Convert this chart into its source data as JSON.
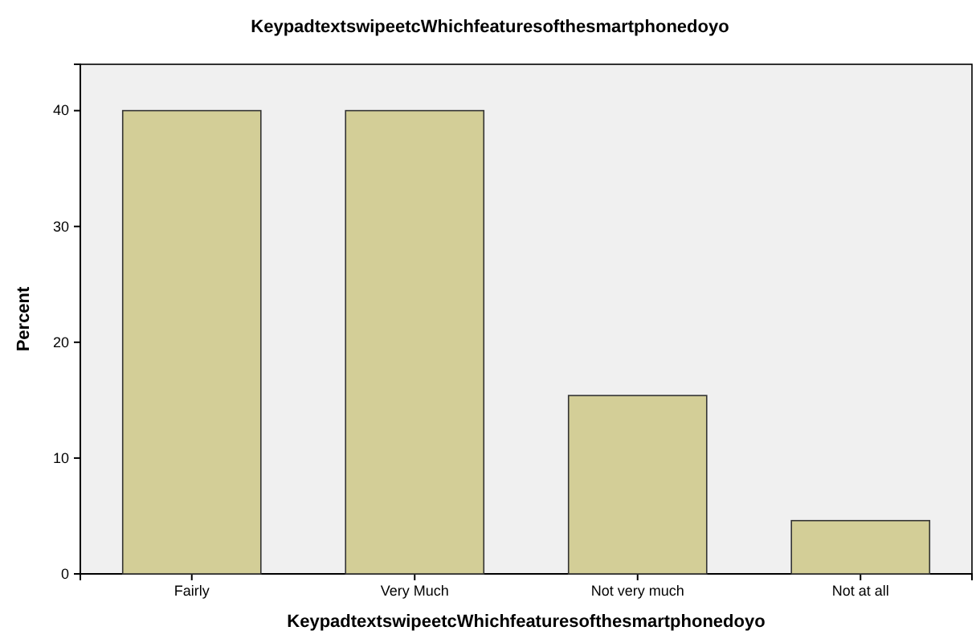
{
  "chart_data": {
    "type": "bar",
    "title": "KeypadtextswipeetcWhichfeaturesofthesmartphonedoyo",
    "xlabel": "KeypadtextswipeetcWhichfeaturesofthesmartphonedoyo",
    "ylabel": "Percent",
    "categories": [
      "Fairly",
      "Very Much",
      "Not very much",
      "Not at all"
    ],
    "values": [
      40,
      40,
      15.4,
      4.6
    ],
    "color": "#d3ce97",
    "ylim": [
      0,
      44
    ],
    "yticks": [
      0,
      10,
      20,
      30,
      40
    ],
    "grid": false
  }
}
